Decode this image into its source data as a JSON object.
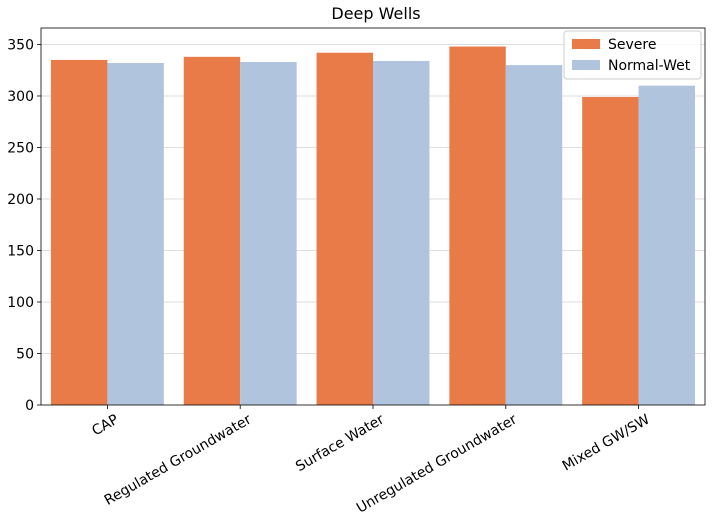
{
  "chart_data": {
    "type": "bar",
    "title": "Deep Wells",
    "xlabel": "",
    "ylabel": "",
    "categories": [
      "CAP",
      "Regulated Groundwater",
      "Surface Water",
      "Unregulated Groundwater",
      "Mixed GW/SW"
    ],
    "series": [
      {
        "name": "Severe",
        "color": "#e87b48",
        "values": [
          335,
          338,
          342,
          348,
          299
        ]
      },
      {
        "name": "Normal-Wet",
        "color": "#b0c4de",
        "values": [
          332,
          333,
          334,
          330,
          310
        ]
      }
    ],
    "ylim": [
      0,
      366
    ],
    "yticks": [
      0,
      50,
      100,
      150,
      200,
      250,
      300,
      350
    ],
    "grid": "y",
    "legend_position": "top-right",
    "xtick_rotation": 30
  }
}
